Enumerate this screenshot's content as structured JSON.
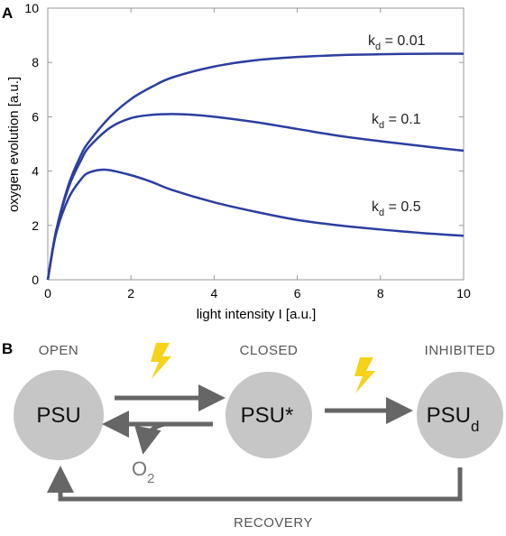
{
  "panel_a_label": "A",
  "panel_b_label": "B",
  "chart_data": {
    "type": "line",
    "xlabel": "light intensity I [a.u.]",
    "ylabel": "oxygen evolution [a.u.]",
    "xlim": [
      0,
      10
    ],
    "ylim": [
      0,
      10
    ],
    "xticks": [
      "0",
      "2",
      "4",
      "6",
      "8",
      "10"
    ],
    "yticks": [
      "0",
      "2",
      "4",
      "6",
      "8",
      "10"
    ],
    "grid": false,
    "line_color": "#2b3ea0",
    "series": [
      {
        "name": "kd = 0.01",
        "label_main": "k",
        "label_sub": "d",
        "label_rest": " = 0.01",
        "x": [
          0,
          0.2,
          0.5,
          0.8,
          1,
          1.5,
          2,
          2.5,
          3,
          4,
          5,
          6,
          7,
          8,
          9,
          10
        ],
        "y": [
          0,
          1.8,
          3.5,
          4.6,
          5.1,
          6.0,
          6.65,
          7.1,
          7.45,
          7.85,
          8.08,
          8.2,
          8.27,
          8.3,
          8.32,
          8.32
        ]
      },
      {
        "name": "kd = 0.1",
        "label_main": "k",
        "label_sub": "d",
        "label_rest": " = 0.1",
        "x": [
          0,
          0.2,
          0.5,
          0.8,
          1,
          1.5,
          2,
          2.5,
          3,
          3.5,
          4,
          5,
          6,
          7,
          8,
          9,
          10
        ],
        "y": [
          0,
          1.8,
          3.4,
          4.4,
          4.9,
          5.6,
          5.95,
          6.07,
          6.1,
          6.07,
          6.0,
          5.8,
          5.55,
          5.3,
          5.1,
          4.92,
          4.75
        ]
      },
      {
        "name": "kd = 0.5",
        "label_main": "k",
        "label_sub": "d",
        "label_rest": " = 0.5",
        "x": [
          0,
          0.2,
          0.5,
          0.8,
          1,
          1.4,
          2,
          2.5,
          3,
          4,
          5,
          6,
          7,
          8,
          9,
          10
        ],
        "y": [
          0,
          1.7,
          3.0,
          3.7,
          3.95,
          4.05,
          3.85,
          3.6,
          3.3,
          2.85,
          2.5,
          2.2,
          2.0,
          1.85,
          1.72,
          1.62
        ]
      }
    ]
  },
  "diagram": {
    "states": {
      "open": "OPEN",
      "closed": "CLOSED",
      "inhibited": "INHIBITED"
    },
    "nodes": {
      "psu": "PSU",
      "psu_star": "PSU*",
      "psu_d_main": "PSU",
      "psu_d_sub": "d"
    },
    "o2_main": "O",
    "o2_sub": "2",
    "recovery": "RECOVERY",
    "node_color": "#c6c6c6",
    "arrow_color": "#666666",
    "lightning_color": "#f7d21a"
  }
}
